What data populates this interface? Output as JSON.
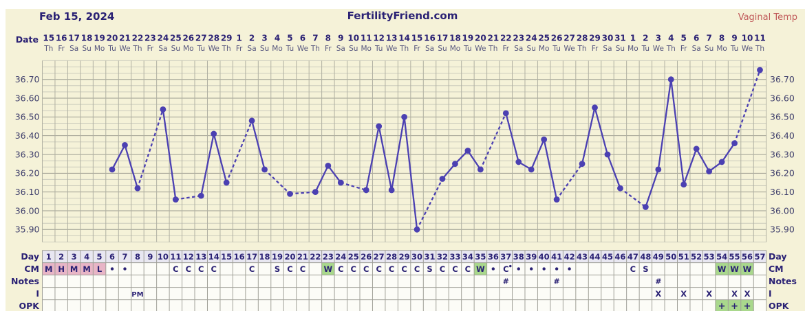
{
  "header": {
    "report_date": "Feb 15, 2024",
    "site_title": "FertilityFriend.com",
    "temp_type_label": "Vaginal Temp",
    "date_row_label": "Date"
  },
  "calendar": {
    "dates": [
      15,
      16,
      17,
      18,
      19,
      20,
      21,
      22,
      23,
      24,
      25,
      26,
      27,
      28,
      29,
      1,
      2,
      3,
      4,
      5,
      6,
      7,
      8,
      9,
      10,
      11,
      12,
      13,
      14,
      15,
      16,
      17,
      18,
      19,
      20,
      21,
      22,
      23,
      24,
      25,
      26,
      27,
      28,
      29,
      30,
      31,
      1,
      2,
      3,
      4,
      5,
      6,
      7,
      8,
      9,
      10,
      11
    ],
    "weekdays": [
      "Th",
      "Fr",
      "Sa",
      "Su",
      "Mo",
      "Tu",
      "We",
      "Th",
      "Fr",
      "Sa",
      "Su",
      "Mo",
      "Tu",
      "We",
      "Th",
      "Fr",
      "Sa",
      "Su",
      "Mo",
      "Tu",
      "We",
      "Th",
      "Fr",
      "Sa",
      "Su",
      "Mo",
      "Tu",
      "We",
      "Th",
      "Fr",
      "Sa",
      "Su",
      "Mo",
      "Tu",
      "We",
      "Th",
      "Fr",
      "Sa",
      "Su",
      "Mo",
      "Tu",
      "We",
      "Th",
      "Fr",
      "Sa",
      "Su",
      "Mo",
      "Tu",
      "We",
      "Th",
      "Fr",
      "Sa",
      "Su",
      "Mo",
      "Tu",
      "We",
      "Th"
    ]
  },
  "chart_data": {
    "type": "line",
    "title": "Vaginal Temp",
    "unit": "C",
    "x_axis": "cycle day 1-57",
    "ylim": [
      35.85,
      36.8
    ],
    "yticks": [
      36.7,
      36.6,
      36.5,
      36.4,
      36.3,
      36.2,
      36.1,
      36.0,
      35.9
    ],
    "grid": true,
    "missing_days_drawn_dashed": true,
    "points": [
      {
        "day": 6,
        "temp": 36.22
      },
      {
        "day": 7,
        "temp": 36.35
      },
      {
        "day": 8,
        "temp": 36.12
      },
      {
        "day": 10,
        "temp": 36.54
      },
      {
        "day": 11,
        "temp": 36.06
      },
      {
        "day": 13,
        "temp": 36.08
      },
      {
        "day": 14,
        "temp": 36.41
      },
      {
        "day": 15,
        "temp": 36.15
      },
      {
        "day": 17,
        "temp": 36.48
      },
      {
        "day": 18,
        "temp": 36.22
      },
      {
        "day": 20,
        "temp": 36.09
      },
      {
        "day": 22,
        "temp": 36.1
      },
      {
        "day": 23,
        "temp": 36.24
      },
      {
        "day": 24,
        "temp": 36.15
      },
      {
        "day": 26,
        "temp": 36.11
      },
      {
        "day": 27,
        "temp": 36.45
      },
      {
        "day": 28,
        "temp": 36.11
      },
      {
        "day": 29,
        "temp": 36.5
      },
      {
        "day": 30,
        "temp": 35.9
      },
      {
        "day": 32,
        "temp": 36.17
      },
      {
        "day": 33,
        "temp": 36.25
      },
      {
        "day": 34,
        "temp": 36.32
      },
      {
        "day": 35,
        "temp": 36.22
      },
      {
        "day": 37,
        "temp": 36.52
      },
      {
        "day": 38,
        "temp": 36.26
      },
      {
        "day": 39,
        "temp": 36.22
      },
      {
        "day": 40,
        "temp": 36.38
      },
      {
        "day": 41,
        "temp": 36.06
      },
      {
        "day": 43,
        "temp": 36.25
      },
      {
        "day": 44,
        "temp": 36.55
      },
      {
        "day": 45,
        "temp": 36.3
      },
      {
        "day": 46,
        "temp": 36.12
      },
      {
        "day": 48,
        "temp": 36.02
      },
      {
        "day": 49,
        "temp": 36.22
      },
      {
        "day": 50,
        "temp": 36.7
      },
      {
        "day": 51,
        "temp": 36.14
      },
      {
        "day": 52,
        "temp": 36.33
      },
      {
        "day": 53,
        "temp": 36.21
      },
      {
        "day": 54,
        "temp": 36.26
      },
      {
        "day": 55,
        "temp": 36.36
      },
      {
        "day": 57,
        "temp": 36.75
      }
    ]
  },
  "table": {
    "row_labels": [
      "Day",
      "CM",
      "Notes",
      "I",
      "OPK"
    ],
    "day_numbers": [
      1,
      2,
      3,
      4,
      5,
      6,
      7,
      8,
      9,
      10,
      11,
      12,
      13,
      14,
      15,
      16,
      17,
      18,
      19,
      20,
      21,
      22,
      23,
      24,
      25,
      26,
      27,
      28,
      29,
      30,
      31,
      32,
      33,
      34,
      35,
      36,
      37,
      38,
      39,
      40,
      41,
      42,
      43,
      44,
      45,
      46,
      47,
      48,
      49,
      50,
      51,
      52,
      53,
      54,
      55,
      56,
      57
    ],
    "cm_cells": [
      {
        "d": 1,
        "t": "M",
        "bg": "menses"
      },
      {
        "d": 2,
        "t": "H",
        "bg": "menses"
      },
      {
        "d": 3,
        "t": "M",
        "bg": "menses"
      },
      {
        "d": 4,
        "t": "M",
        "bg": "menses"
      },
      {
        "d": 5,
        "t": "L",
        "bg": "menses"
      },
      {
        "d": 6,
        "t": "dot"
      },
      {
        "d": 7,
        "t": "dot"
      },
      {
        "d": 11,
        "t": "C"
      },
      {
        "d": 12,
        "t": "C"
      },
      {
        "d": 13,
        "t": "C"
      },
      {
        "d": 14,
        "t": "C"
      },
      {
        "d": 17,
        "t": "C"
      },
      {
        "d": 19,
        "t": "S"
      },
      {
        "d": 20,
        "t": "C"
      },
      {
        "d": 21,
        "t": "C"
      },
      {
        "d": 23,
        "t": "W",
        "bg": "fertile"
      },
      {
        "d": 24,
        "t": "C"
      },
      {
        "d": 25,
        "t": "C"
      },
      {
        "d": 26,
        "t": "C"
      },
      {
        "d": 27,
        "t": "C"
      },
      {
        "d": 28,
        "t": "C"
      },
      {
        "d": 29,
        "t": "C"
      },
      {
        "d": 30,
        "t": "C"
      },
      {
        "d": 31,
        "t": "S"
      },
      {
        "d": 32,
        "t": "C"
      },
      {
        "d": 33,
        "t": "C"
      },
      {
        "d": 34,
        "t": "C"
      },
      {
        "d": 35,
        "t": "W",
        "bg": "fertile"
      },
      {
        "d": 36,
        "t": "dot"
      },
      {
        "d": 37,
        "t": "C",
        "sup": "dot"
      },
      {
        "d": 38,
        "t": "dot"
      },
      {
        "d": 39,
        "t": "dot"
      },
      {
        "d": 40,
        "t": "dot"
      },
      {
        "d": 41,
        "t": "dot"
      },
      {
        "d": 42,
        "t": "dot"
      },
      {
        "d": 47,
        "t": "C"
      },
      {
        "d": 48,
        "t": "S"
      },
      {
        "d": 54,
        "t": "W",
        "bg": "fertile"
      },
      {
        "d": 55,
        "t": "W",
        "bg": "fertile"
      },
      {
        "d": 56,
        "t": "W",
        "bg": "fertile"
      }
    ],
    "notes_cells": [
      {
        "d": 37,
        "t": "#"
      },
      {
        "d": 41,
        "t": "#"
      },
      {
        "d": 49,
        "t": "#"
      }
    ],
    "i_cells": [
      {
        "d": 8,
        "t": "PM"
      },
      {
        "d": 49,
        "t": "X"
      },
      {
        "d": 51,
        "t": "X"
      },
      {
        "d": 53,
        "t": "X"
      },
      {
        "d": 55,
        "t": "X"
      },
      {
        "d": 56,
        "t": "X"
      }
    ],
    "opk_cells": [
      {
        "d": 54,
        "t": "+",
        "bg": "fertile"
      },
      {
        "d": 55,
        "t": "+",
        "bg": "fertile"
      },
      {
        "d": 56,
        "t": "+",
        "bg": "fertile"
      }
    ]
  },
  "colors": {
    "paper": "#f5f2d8",
    "line": "#4b40b2",
    "menses": "#e8b5c6",
    "fertile": "#a9d88c",
    "day_row_bg": "#e8e7f1",
    "navy_text": "#2a2174",
    "temp_label_red": "#c05a5a"
  }
}
